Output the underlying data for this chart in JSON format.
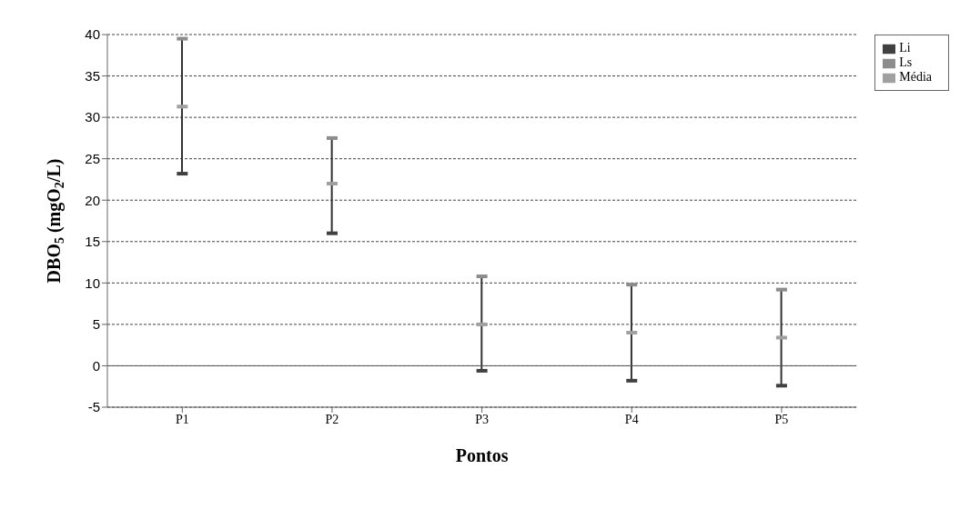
{
  "chart_data": {
    "type": "scatter",
    "xlabel": "Pontos",
    "ylabel": "DBO$_{5}$ (mgO$_{2}$/L)",
    "categories": [
      "P1",
      "P2",
      "P3",
      "P4",
      "P5"
    ],
    "series": [
      {
        "name": "Média",
        "color": "#a0a0a0",
        "values": [
          31.3,
          22,
          5,
          4,
          3.4
        ]
      },
      {
        "name": "Li",
        "color": "#404040",
        "values": [
          23.2,
          16,
          -0.6,
          -1.8,
          -2.4
        ]
      },
      {
        "name": "Ls",
        "color": "#8c8c8c",
        "values": [
          39.5,
          27.5,
          10.8,
          9.8,
          9.2
        ]
      }
    ],
    "ylim": [
      -5,
      40
    ],
    "yticks": [
      -5,
      0,
      5,
      10,
      15,
      20,
      25,
      30,
      35,
      40
    ],
    "grid": "y",
    "legend": "top right",
    "marker": "square"
  }
}
